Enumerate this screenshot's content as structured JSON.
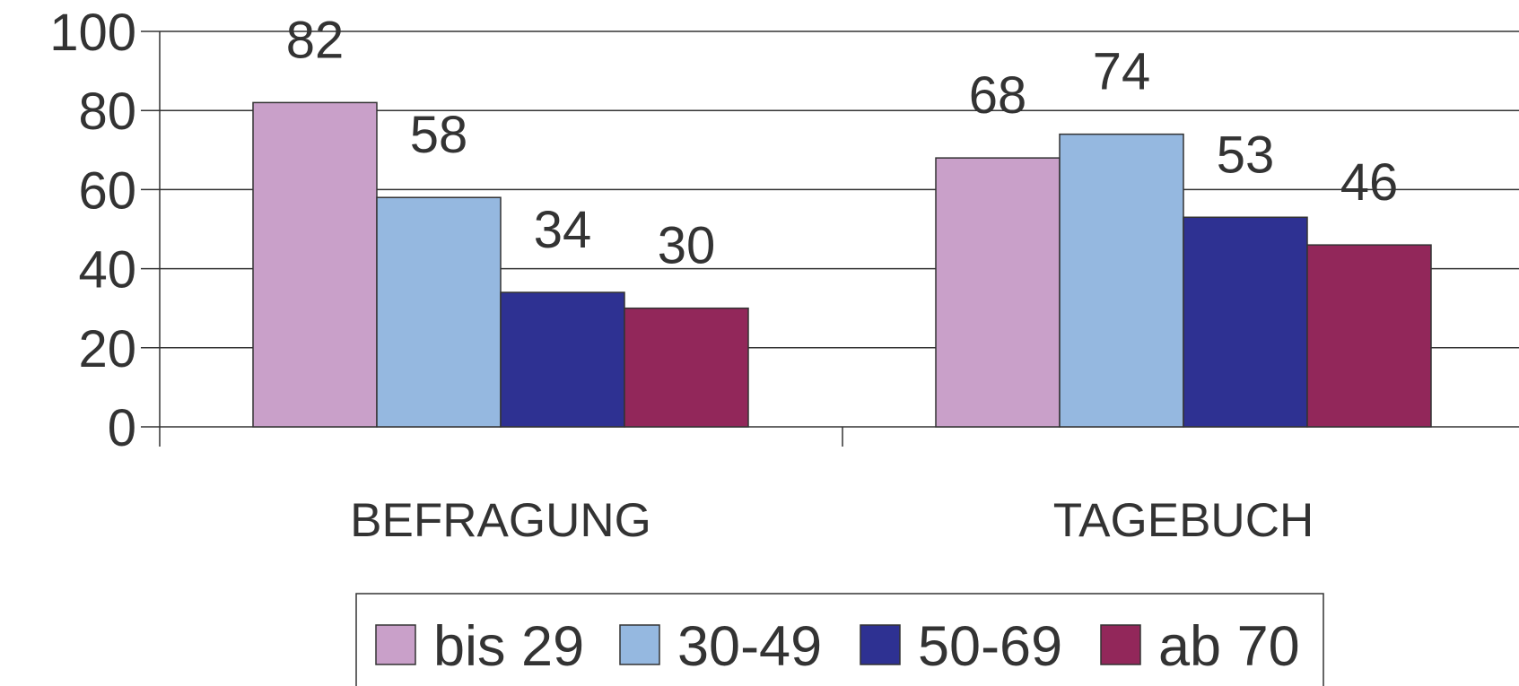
{
  "chart_data": {
    "type": "bar",
    "categories": [
      "BEFRAGUNG",
      "TAGEBUCH"
    ],
    "series": [
      {
        "name": "bis 29",
        "color": "#c9a0c9",
        "values": [
          82,
          68
        ]
      },
      {
        "name": "30-49",
        "color": "#95b8e0",
        "values": [
          58,
          74
        ]
      },
      {
        "name": "50-69",
        "color": "#2e3192",
        "values": [
          34,
          53
        ]
      },
      {
        "name": "ab 70",
        "color": "#92275a",
        "values": [
          30,
          46
        ]
      }
    ],
    "ylim": [
      0,
      100
    ],
    "yticks": [
      0,
      20,
      40,
      60,
      80,
      100
    ],
    "grid": true,
    "legend": "bottom"
  }
}
